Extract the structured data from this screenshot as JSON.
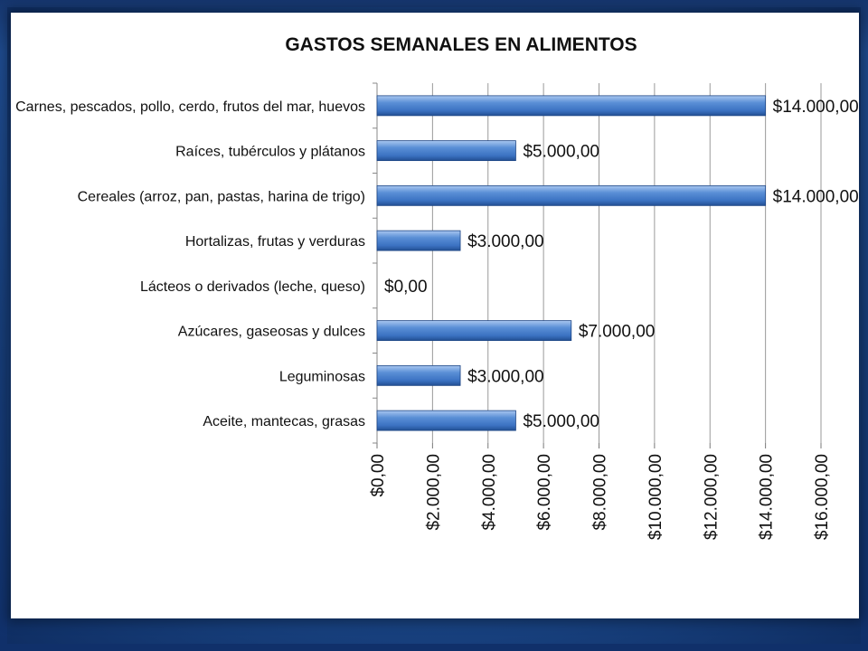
{
  "chart_data": {
    "type": "bar",
    "orientation": "horizontal",
    "title": "GASTOS  SEMANALES EN ALIMENTOS",
    "categories": [
      "Carnes, pescados, pollo, cerdo, frutos del mar, huevos",
      "Raíces, tubérculos y plátanos",
      "Cereales (arroz, pan, pastas, harina de trigo)",
      "Hortalizas, frutas y verduras",
      "Lácteos o derivados (leche, queso)",
      "Azúcares, gaseosas y dulces",
      "Leguminosas",
      "Aceite, mantecas, grasas"
    ],
    "values": [
      14000,
      5000,
      14000,
      3000,
      0,
      7000,
      3000,
      5000
    ],
    "value_labels": [
      "$14.000,00",
      "$5.000,00",
      "$14.000,00",
      "$3.000,00",
      "$0,00",
      "$7.000,00",
      "$3.000,00",
      "$5.000,00"
    ],
    "xlim": [
      0,
      16000
    ],
    "x_ticks": [
      0,
      2000,
      4000,
      6000,
      8000,
      10000,
      12000,
      14000,
      16000
    ],
    "x_tick_labels": [
      "$0,00",
      "$2.000,00",
      "$4.000,00",
      "$6.000,00",
      "$8.000,00",
      "$10.000,00",
      "$12.000,00",
      "$14.000,00",
      "$16.000,00"
    ],
    "grid": true,
    "legend": "none",
    "colors": {
      "bar": "#4f86d2",
      "bar_dark": "#2a5ea8",
      "grid": "#9a9a9a"
    }
  }
}
